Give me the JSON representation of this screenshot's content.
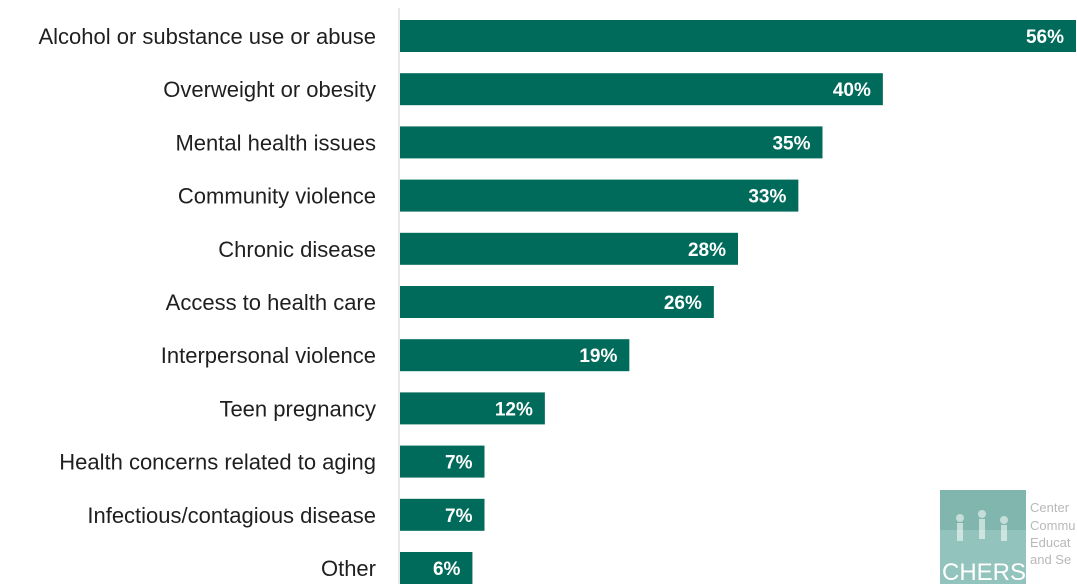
{
  "chart_data": {
    "type": "bar",
    "orientation": "horizontal",
    "categories": [
      "Alcohol or substance use or abuse",
      "Overweight or obesity",
      "Mental health issues",
      "Community violence",
      "Chronic disease",
      "Access to health care",
      "Interpersonal violence",
      "Teen pregnancy",
      "Health concerns related to aging",
      "Infectious/contagious disease",
      "Other"
    ],
    "values": [
      56,
      40,
      35,
      33,
      28,
      26,
      19,
      12,
      7,
      7,
      6
    ],
    "value_labels": [
      "56%",
      "40%",
      "35%",
      "33%",
      "28%",
      "26%",
      "19%",
      "12%",
      "7%",
      "7%",
      "6%"
    ],
    "xlim": [
      0,
      56
    ],
    "grid": false,
    "bar_color": "#006b5a"
  },
  "logo": {
    "acronym": "CHERS",
    "text_lines": [
      "Center",
      "Commu",
      "Educat",
      "and Se"
    ],
    "color": "#7fb8b0"
  }
}
